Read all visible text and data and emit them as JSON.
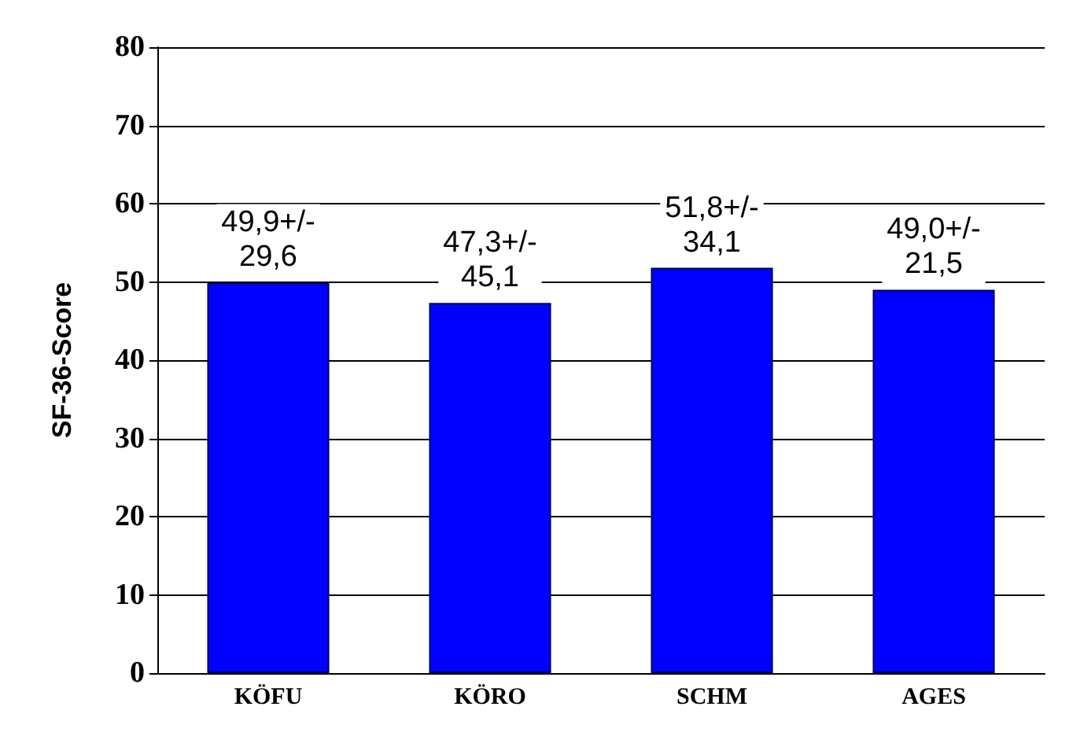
{
  "chart_data": {
    "type": "bar",
    "ylabel": "SF-36-Score",
    "categories": [
      "KÖFU",
      "KÖRO",
      "SCHM",
      "AGES"
    ],
    "values": [
      49.9,
      47.3,
      51.8,
      49.0
    ],
    "value_labels": [
      "49,9+/- 29,6",
      "47,3+/- 45,1",
      "51,8+/- 34,1",
      "49,0+/- 21,5"
    ],
    "color": "#0000ff",
    "ylim": [
      0,
      80
    ],
    "yticks": [
      0,
      10,
      20,
      30,
      40,
      50,
      60,
      70,
      80
    ],
    "grid": "y"
  }
}
